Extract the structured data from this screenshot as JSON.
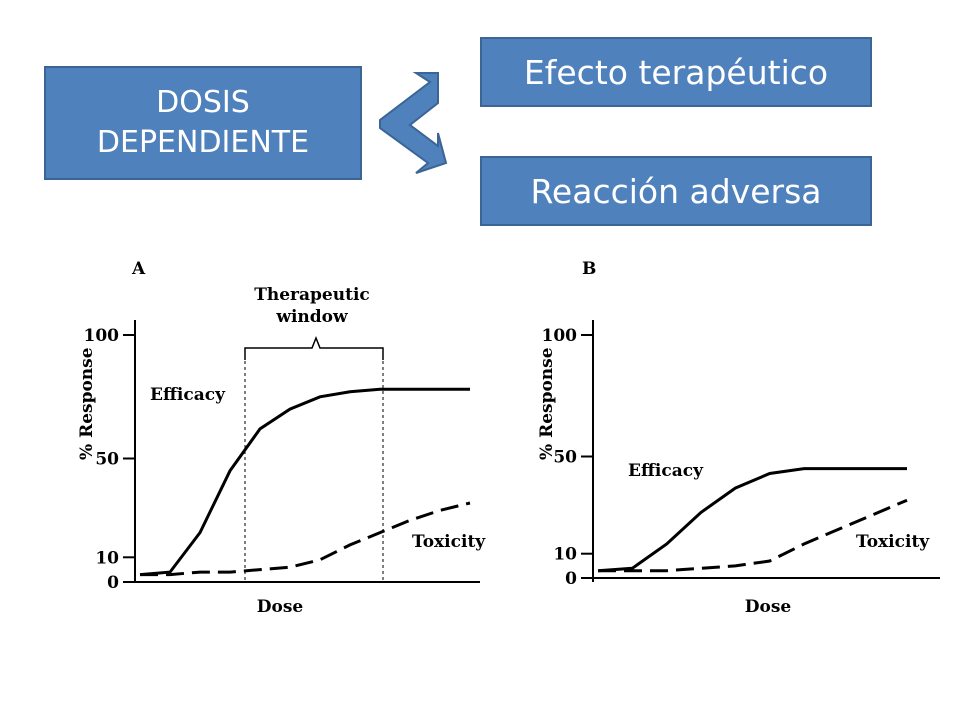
{
  "boxes": {
    "dosis_line1": "DOSIS",
    "dosis_line2": "DEPENDIENTE",
    "efecto": "Efecto terapéutico",
    "reaccion": "Reacción adversa"
  },
  "colors": {
    "box_fill": "#4f81bd",
    "box_border": "#3a6595",
    "text": "#ffffff"
  },
  "chart_data": [
    {
      "type": "line",
      "panel_label": "A",
      "xlabel": "Dose",
      "ylabel": "% Response",
      "yticks": [
        0,
        10,
        50,
        100
      ],
      "ylim": [
        0,
        100
      ],
      "annotation": "Therapeutic window",
      "series": [
        {
          "name": "Efficacy",
          "style": "solid",
          "values": [
            3,
            4,
            20,
            45,
            62,
            70,
            75,
            77,
            78,
            78,
            78,
            78
          ]
        },
        {
          "name": "Toxicity",
          "style": "dashed",
          "values": [
            3,
            3,
            4,
            4,
            5,
            6,
            9,
            15,
            20,
            25,
            29,
            32
          ]
        }
      ],
      "labels": {
        "efficacy": "Efficacy",
        "toxicity": "Toxicity",
        "window_line1": "Therapeutic",
        "window_line2": "window"
      }
    },
    {
      "type": "line",
      "panel_label": "B",
      "xlabel": "Dose",
      "ylabel": "% Response",
      "yticks": [
        0,
        10,
        50,
        100
      ],
      "ylim": [
        0,
        100
      ],
      "series": [
        {
          "name": "Efficacy",
          "style": "solid",
          "values": [
            3,
            4,
            14,
            27,
            37,
            43,
            45,
            45,
            45,
            45
          ]
        },
        {
          "name": "Toxicity",
          "style": "dashed",
          "values": [
            3,
            3,
            3,
            4,
            5,
            7,
            14,
            20,
            26,
            32
          ]
        }
      ],
      "labels": {
        "efficacy": "Efficacy",
        "toxicity": "Toxicity"
      }
    }
  ]
}
